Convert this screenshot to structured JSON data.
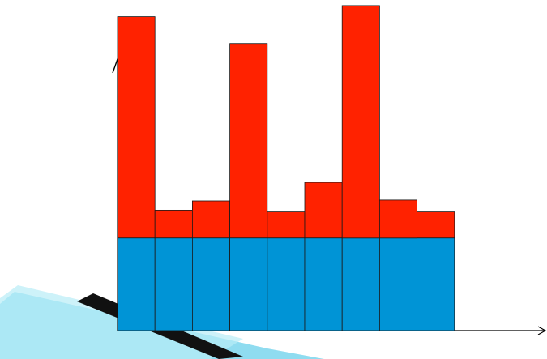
{
  "colors": {
    "top_segment": "#ff2200",
    "bottom_segment": "#0094d6",
    "bar_border": "#1a1a1a",
    "axis": "#000000",
    "swoosh_dark": "#111111",
    "swoosh_light": "#7fd6ee"
  },
  "chart_data": {
    "type": "bar",
    "stacked": true,
    "categories": [
      "",
      "",
      "",
      "",
      "",
      "",
      "",
      "",
      ""
    ],
    "series": [
      {
        "color": "#0094d6",
        "values": [
          1,
          1,
          1,
          1,
          1,
          1,
          1,
          1,
          1
        ]
      },
      {
        "color": "#ff2200",
        "values": [
          2.39,
          0.3,
          0.4,
          2.1,
          0.29,
          0.6,
          2.51,
          0.41,
          0.29
        ]
      }
    ],
    "title": "",
    "xlabel": "",
    "ylabel": "",
    "ylim": [
      0,
      3.5
    ],
    "grid": false,
    "legend": "none"
  }
}
